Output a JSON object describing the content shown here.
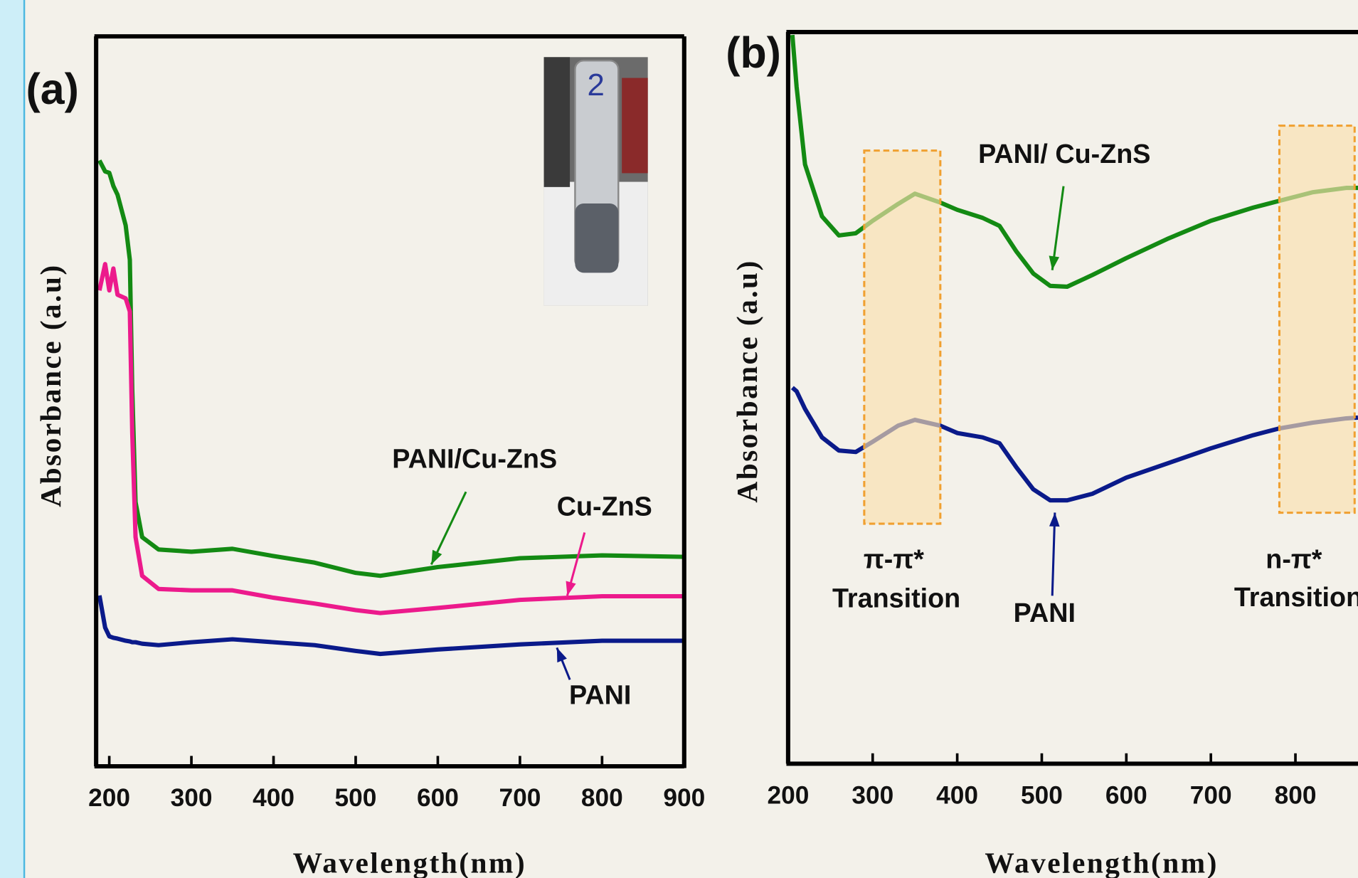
{
  "chart_data": [
    {
      "type": "line",
      "panel_label": "(a)",
      "x_label": "Wavelength(nm)",
      "y_label": "Absorbance (a.u)",
      "x": [
        188,
        195,
        200,
        205,
        210,
        220,
        225,
        228,
        232,
        240,
        260,
        300,
        350,
        400,
        450,
        500,
        530,
        600,
        700,
        800,
        900
      ],
      "series": [
        {
          "name": "PANI/Cu-ZnS",
          "color": "#138a13",
          "values": [
            0.83,
            0.815,
            0.813,
            0.795,
            0.783,
            0.741,
            0.694,
            0.516,
            0.362,
            0.314,
            0.297,
            0.294,
            0.298,
            0.288,
            0.279,
            0.265,
            0.261,
            0.273,
            0.285,
            0.289,
            0.287
          ]
        },
        {
          "name": "Cu-ZnS",
          "color": "#ec1a8c",
          "values": [
            0.652,
            0.688,
            0.652,
            0.682,
            0.646,
            0.641,
            0.623,
            0.457,
            0.314,
            0.261,
            0.243,
            0.241,
            0.241,
            0.231,
            0.223,
            0.214,
            0.21,
            0.217,
            0.228,
            0.233,
            0.233
          ]
        },
        {
          "name": "PANI",
          "color": "#0a1a8a",
          "values": [
            0.234,
            0.19,
            0.178,
            0.176,
            0.175,
            0.172,
            0.171,
            0.17,
            0.17,
            0.168,
            0.166,
            0.17,
            0.174,
            0.17,
            0.166,
            0.158,
            0.154,
            0.16,
            0.167,
            0.172,
            0.172
          ]
        }
      ],
      "xlim": [
        184,
        900
      ],
      "ylim": [
        0,
        1
      ],
      "xticks": [
        200,
        300,
        400,
        500,
        600,
        700,
        800,
        900
      ]
    },
    {
      "type": "line",
      "panel_label": "(b)",
      "x_label": "Wavelength(nm)",
      "y_label": "Absorbance (a.u)",
      "x": [
        205,
        210,
        220,
        240,
        260,
        280,
        300,
        330,
        350,
        380,
        400,
        430,
        450,
        470,
        490,
        510,
        530,
        560,
        600,
        650,
        700,
        750,
        780,
        820,
        860,
        874
      ],
      "series": [
        {
          "name": "PANI/ Cu-ZnS",
          "color": "#138a13",
          "values": [
            0.996,
            0.925,
            0.819,
            0.748,
            0.722,
            0.725,
            0.742,
            0.765,
            0.779,
            0.767,
            0.757,
            0.746,
            0.735,
            0.7,
            0.67,
            0.653,
            0.652,
            0.668,
            0.691,
            0.718,
            0.742,
            0.76,
            0.769,
            0.781,
            0.787,
            0.787
          ]
        },
        {
          "name": "PANI",
          "color": "#0a1a8a",
          "values": [
            0.514,
            0.509,
            0.485,
            0.446,
            0.428,
            0.426,
            0.44,
            0.462,
            0.47,
            0.462,
            0.452,
            0.446,
            0.438,
            0.405,
            0.375,
            0.36,
            0.36,
            0.369,
            0.391,
            0.411,
            0.431,
            0.449,
            0.458,
            0.466,
            0.472,
            0.473
          ]
        }
      ],
      "bands": [
        {
          "xlim": [
            290,
            380
          ],
          "ylim": [
            0.328,
            0.838
          ],
          "label": "π-π*",
          "sublabel": "Transition"
        },
        {
          "xlim": [
            781,
            870
          ],
          "ylim": [
            0.343,
            0.872
          ],
          "label": "n-π*",
          "sublabel": "Transition"
        }
      ],
      "xlim": [
        200,
        874
      ],
      "ylim": [
        0,
        1
      ],
      "xticks": [
        200,
        300,
        400,
        500,
        600,
        700,
        800
      ]
    }
  ]
}
